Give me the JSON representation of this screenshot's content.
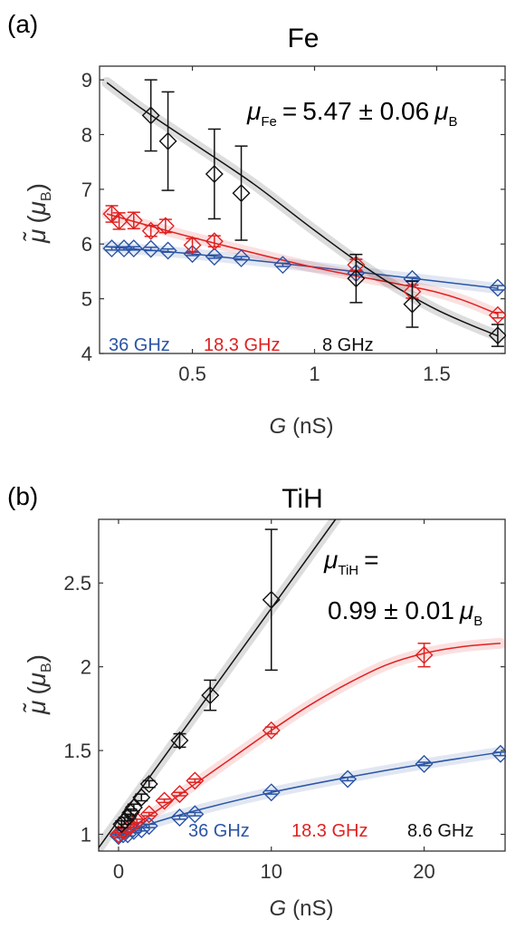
{
  "chart_data": [
    {
      "type": "scatter",
      "panel_label": "(a)",
      "title": "Fe",
      "xlabel_var": "G",
      "xlabel_unit": "(nS)",
      "ylabel_sym": "μ̃",
      "ylabel_unit_open": "(",
      "ylabel_unit_sym": "μ",
      "ylabel_unit_sub": "B",
      "ylabel_unit_close": ")",
      "xlim": [
        0.12,
        1.78
      ],
      "ylim": [
        4,
        9.25
      ],
      "xticks": [
        0.5,
        1,
        1.5
      ],
      "xtick_labels": [
        "0.5",
        "1",
        "1.5"
      ],
      "yticks": [
        4,
        5,
        6,
        7,
        8,
        9
      ],
      "ytick_labels": [
        "4",
        "5",
        "6",
        "7",
        "8",
        "9"
      ],
      "annotation": {
        "prefix": "μ",
        "prefix_sub": "Fe",
        "equals": "=",
        "value": "5.47 ± 0.06",
        "unit": "μ",
        "unit_sub": "B"
      },
      "series": [
        {
          "name": "36 GHz",
          "color": "#2b55a5",
          "points": [
            {
              "x": 0.17,
              "y": 5.92,
              "err": 0.03
            },
            {
              "x": 0.22,
              "y": 5.92,
              "err": 0.03
            },
            {
              "x": 0.26,
              "y": 5.92,
              "err": 0.03
            },
            {
              "x": 0.33,
              "y": 5.91,
              "err": 0.03
            },
            {
              "x": 0.4,
              "y": 5.88,
              "err": 0.03
            },
            {
              "x": 0.5,
              "y": 5.82,
              "err": 0.03
            },
            {
              "x": 0.59,
              "y": 5.77,
              "err": 0.03
            },
            {
              "x": 0.7,
              "y": 5.74,
              "err": 0.03
            },
            {
              "x": 0.87,
              "y": 5.62,
              "err": 0.03
            },
            {
              "x": 1.17,
              "y": 5.47,
              "err": 0.03
            },
            {
              "x": 1.4,
              "y": 5.36,
              "err": 0.03
            },
            {
              "x": 1.75,
              "y": 5.2,
              "err": 0.04
            }
          ],
          "fit": [
            [
              0.15,
              5.95
            ],
            [
              0.5,
              5.82
            ],
            [
              1,
              5.58
            ],
            [
              1.5,
              5.32
            ],
            [
              1.75,
              5.19
            ]
          ]
        },
        {
          "name": "18.3 GHz",
          "color": "#e02121",
          "points": [
            {
              "x": 0.17,
              "y": 6.55,
              "err": 0.15
            },
            {
              "x": 0.2,
              "y": 6.42,
              "err": 0.15
            },
            {
              "x": 0.26,
              "y": 6.43,
              "err": 0.15
            },
            {
              "x": 0.33,
              "y": 6.24,
              "err": 0.1
            },
            {
              "x": 0.39,
              "y": 6.33,
              "err": 0.12
            },
            {
              "x": 0.5,
              "y": 5.98,
              "err": 0.12
            },
            {
              "x": 0.59,
              "y": 6.05,
              "err": 0.1
            },
            {
              "x": 1.17,
              "y": 5.62,
              "err": 0.1
            },
            {
              "x": 1.4,
              "y": 5.13,
              "err": 0.12
            },
            {
              "x": 1.75,
              "y": 4.7,
              "err": 0.05
            }
          ],
          "fit": [
            [
              0.15,
              6.55
            ],
            [
              0.5,
              6.12
            ],
            [
              1,
              5.57
            ],
            [
              1.5,
              5.12
            ],
            [
              1.75,
              4.72
            ]
          ]
        },
        {
          "name": "8 GHz",
          "color": "#111111",
          "points": [
            {
              "x": 0.33,
              "y": 8.35,
              "err": 0.65
            },
            {
              "x": 0.4,
              "y": 7.88,
              "err": 0.9
            },
            {
              "x": 0.59,
              "y": 7.28,
              "err": 0.82
            },
            {
              "x": 0.7,
              "y": 6.93,
              "err": 0.86
            },
            {
              "x": 1.17,
              "y": 5.37,
              "err": 0.44
            },
            {
              "x": 1.4,
              "y": 4.9,
              "err": 0.42
            },
            {
              "x": 1.75,
              "y": 4.33,
              "err": 0.2
            }
          ],
          "fit": [
            [
              0.15,
              8.95
            ],
            [
              0.3,
              8.45
            ],
            [
              0.5,
              7.85
            ],
            [
              0.75,
              7.1
            ],
            [
              1,
              6.25
            ],
            [
              1.25,
              5.45
            ],
            [
              1.5,
              4.8
            ],
            [
              1.75,
              4.32
            ]
          ]
        }
      ]
    },
    {
      "type": "scatter",
      "panel_label": "(b)",
      "title": "TiH",
      "xlabel_var": "G",
      "xlabel_unit": "(nS)",
      "ylabel_sym": "μ̃",
      "ylabel_unit_open": "(",
      "ylabel_unit_sym": "μ",
      "ylabel_unit_sub": "B",
      "ylabel_unit_close": ")",
      "xlim": [
        -1.3,
        25.3
      ],
      "ylim": [
        0.9,
        2.88
      ],
      "xticks": [
        0,
        10,
        20
      ],
      "xtick_labels": [
        "0",
        "10",
        "20"
      ],
      "yticks": [
        1,
        1.5,
        2,
        2.5
      ],
      "ytick_labels": [
        "1",
        "1.5",
        "2",
        "2.5"
      ],
      "annotation": {
        "prefix": "μ",
        "prefix_sub": "TiH",
        "equals": "=",
        "value": "0.99 ± 0.01",
        "unit": "μ",
        "unit_sub": "B"
      },
      "series": [
        {
          "name": "36 GHz",
          "color": "#2b55a5",
          "points": [
            {
              "x": 0,
              "y": 0.99,
              "err": 0.01
            },
            {
              "x": 0.3,
              "y": 1,
              "err": 0.01
            },
            {
              "x": 0.6,
              "y": 1,
              "err": 0.01
            },
            {
              "x": 1,
              "y": 1.02,
              "err": 0.01
            },
            {
              "x": 1.5,
              "y": 1.03,
              "err": 0.01
            },
            {
              "x": 2,
              "y": 1.05,
              "err": 0.01
            },
            {
              "x": 4,
              "y": 1.1,
              "err": 0.01
            },
            {
              "x": 5,
              "y": 1.12,
              "err": 0.01
            },
            {
              "x": 10,
              "y": 1.25,
              "err": 0.01
            },
            {
              "x": 15,
              "y": 1.33,
              "err": 0.01
            },
            {
              "x": 20,
              "y": 1.42,
              "err": 0.01
            },
            {
              "x": 25,
              "y": 1.48,
              "err": 0.01
            }
          ],
          "fit": [
            [
              0,
              0.99
            ],
            [
              2,
              1.06
            ],
            [
              5,
              1.14
            ],
            [
              10,
              1.25
            ],
            [
              15,
              1.34
            ],
            [
              20,
              1.42
            ],
            [
              25,
              1.49
            ]
          ]
        },
        {
          "name": "18.3 GHz",
          "color": "#e02121",
          "points": [
            {
              "x": 0,
              "y": 1,
              "err": 0.01
            },
            {
              "x": 0.4,
              "y": 1.02,
              "err": 0.01
            },
            {
              "x": 0.8,
              "y": 1.05,
              "err": 0.01
            },
            {
              "x": 1.2,
              "y": 1.08,
              "err": 0.01
            },
            {
              "x": 2,
              "y": 1.12,
              "err": 0.01
            },
            {
              "x": 3,
              "y": 1.2,
              "err": 0.01
            },
            {
              "x": 4,
              "y": 1.24,
              "err": 0.01
            },
            {
              "x": 5,
              "y": 1.32,
              "err": 0.01
            },
            {
              "x": 10,
              "y": 1.62,
              "err": 0.02
            },
            {
              "x": 20,
              "y": 2.07,
              "err": 0.07
            }
          ],
          "fit": [
            [
              0,
              0.99
            ],
            [
              2.5,
              1.14
            ],
            [
              5,
              1.3
            ],
            [
              7.5,
              1.46
            ],
            [
              10,
              1.62
            ],
            [
              12.5,
              1.77
            ],
            [
              15,
              1.9
            ],
            [
              17.5,
              2.01
            ],
            [
              20,
              2.08
            ],
            [
              22.5,
              2.12
            ],
            [
              25,
              2.14
            ]
          ]
        },
        {
          "name": "8.6 GHz",
          "color": "#111111",
          "points": [
            {
              "x": 0.2,
              "y": 1.06,
              "err": 0.02
            },
            {
              "x": 0.4,
              "y": 1.08,
              "err": 0.02
            },
            {
              "x": 0.6,
              "y": 1.1,
              "err": 0.02
            },
            {
              "x": 0.8,
              "y": 1.13,
              "err": 0.02
            },
            {
              "x": 1,
              "y": 1.16,
              "err": 0.02
            },
            {
              "x": 1.5,
              "y": 1.22,
              "err": 0.02
            },
            {
              "x": 2,
              "y": 1.3,
              "err": 0.02
            },
            {
              "x": 4,
              "y": 1.56,
              "err": 0.04
            },
            {
              "x": 6,
              "y": 1.83,
              "err": 0.09
            },
            {
              "x": 10,
              "y": 2.4,
              "err": 0.42
            }
          ],
          "fit": [
            [
              -1.3,
              0.92
            ],
            [
              14.2,
              2.88
            ]
          ]
        }
      ]
    }
  ]
}
